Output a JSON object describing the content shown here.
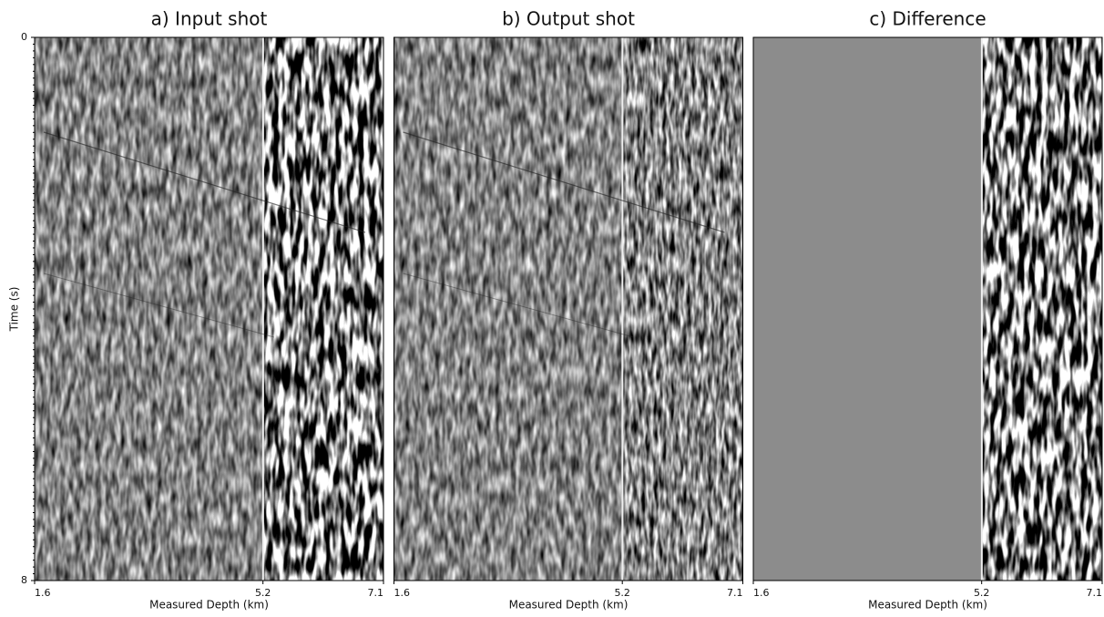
{
  "chart_data": [
    {
      "type": "seismic",
      "title": "a) Input shot",
      "xlabel": "Measured Depth (km)",
      "ylabel": "Time (s)",
      "xlim": [
        1.6,
        7.1
      ],
      "xticks": [
        1.6,
        5.2,
        7.1
      ],
      "ylim": [
        0,
        8
      ],
      "yticks": [
        0,
        8
      ]
    },
    {
      "type": "seismic",
      "title": "b) Output shot",
      "xlabel": "Measured Depth (km)",
      "xlim": [
        1.6,
        7.1
      ],
      "xticks": [
        1.6,
        5.2,
        7.1
      ]
    },
    {
      "type": "seismic",
      "title": "c) Difference",
      "xlabel": "Measured Depth (km)",
      "xlim": [
        1.6,
        7.1
      ],
      "xticks": [
        1.6,
        5.2,
        7.1
      ]
    }
  ]
}
